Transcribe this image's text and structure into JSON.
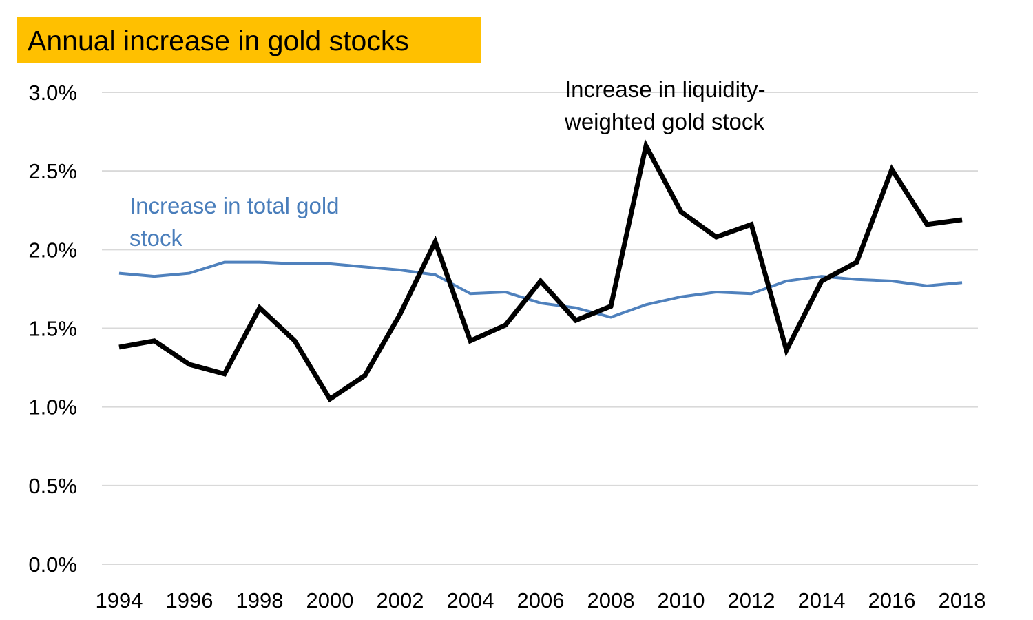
{
  "chart_data": {
    "type": "line",
    "title": "Annual increase in gold stocks",
    "x": [
      1994,
      1995,
      1996,
      1997,
      1998,
      1999,
      2000,
      2001,
      2002,
      2003,
      2004,
      2005,
      2006,
      2007,
      2008,
      2009,
      2010,
      2011,
      2012,
      2013,
      2014,
      2015,
      2016,
      2017,
      2018
    ],
    "xticks": [
      "1994",
      "1996",
      "1998",
      "2000",
      "2002",
      "2004",
      "2006",
      "2008",
      "2010",
      "2012",
      "2014",
      "2016",
      "2018"
    ],
    "yticks": [
      "0.0%",
      "0.5%",
      "1.0%",
      "1.5%",
      "2.0%",
      "2.5%",
      "3.0%"
    ],
    "ylim": [
      0,
      3.0
    ],
    "yunit": "%",
    "grid": "horizontal",
    "series": [
      {
        "name": "Increase in total gold stock",
        "label_lines": [
          "Increase in total gold",
          "stock"
        ],
        "color": "#4F81BD",
        "values": [
          1.85,
          1.83,
          1.85,
          1.92,
          1.92,
          1.91,
          1.91,
          1.89,
          1.87,
          1.84,
          1.72,
          1.73,
          1.66,
          1.63,
          1.57,
          1.65,
          1.7,
          1.73,
          1.72,
          1.8,
          1.83,
          1.81,
          1.8,
          1.77,
          1.79
        ]
      },
      {
        "name": "Increase in liquidity-weighted gold stock",
        "label_lines": [
          "Increase in liquidity-",
          "weighted gold stock"
        ],
        "color": "#000000",
        "values": [
          1.38,
          1.42,
          1.27,
          1.21,
          1.63,
          1.42,
          1.05,
          1.2,
          1.59,
          2.05,
          1.42,
          1.52,
          1.8,
          1.55,
          1.64,
          2.66,
          2.24,
          2.08,
          2.16,
          1.36,
          1.8,
          1.92,
          2.51,
          2.16,
          2.19
        ]
      }
    ],
    "title_bg_color": "#FFC000",
    "grid_color": "#D9D9D9"
  }
}
